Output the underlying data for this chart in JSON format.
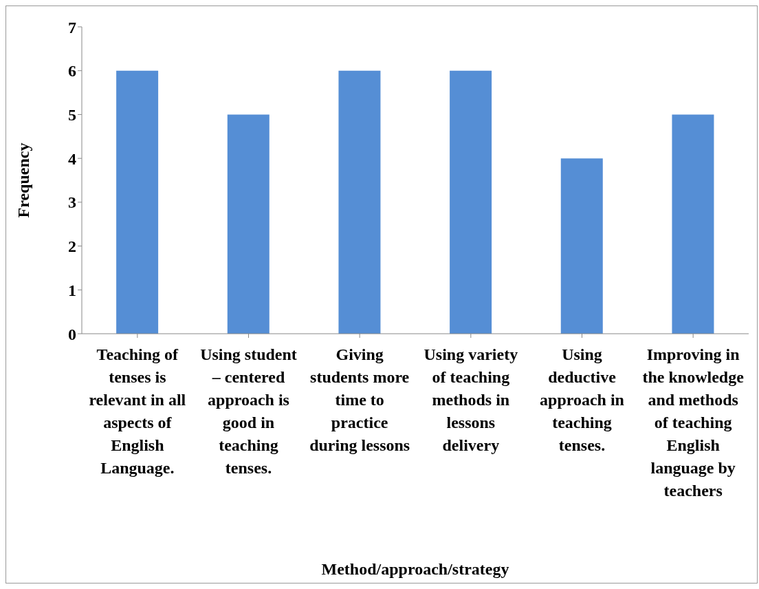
{
  "chart_data": {
    "type": "bar",
    "xlabel": "Method/approach/strategy",
    "ylabel": "Frequency",
    "categories": [
      "Teaching of tenses is relevant in all aspects of English Language.",
      "Using student – centered approach is good in teaching tenses.",
      "Giving students more time to practice during lessons",
      "Using variety of teaching methods in lessons delivery",
      "Using deductive approach in teaching tenses.",
      "Improving in the knowledge and methods of teaching English language by teachers"
    ],
    "values": [
      6,
      5,
      6,
      6,
      4,
      5
    ],
    "color": "#558ed5",
    "ylim": [
      0,
      7
    ],
    "yticks": [
      0,
      1,
      2,
      3,
      4,
      5,
      6,
      7
    ]
  }
}
